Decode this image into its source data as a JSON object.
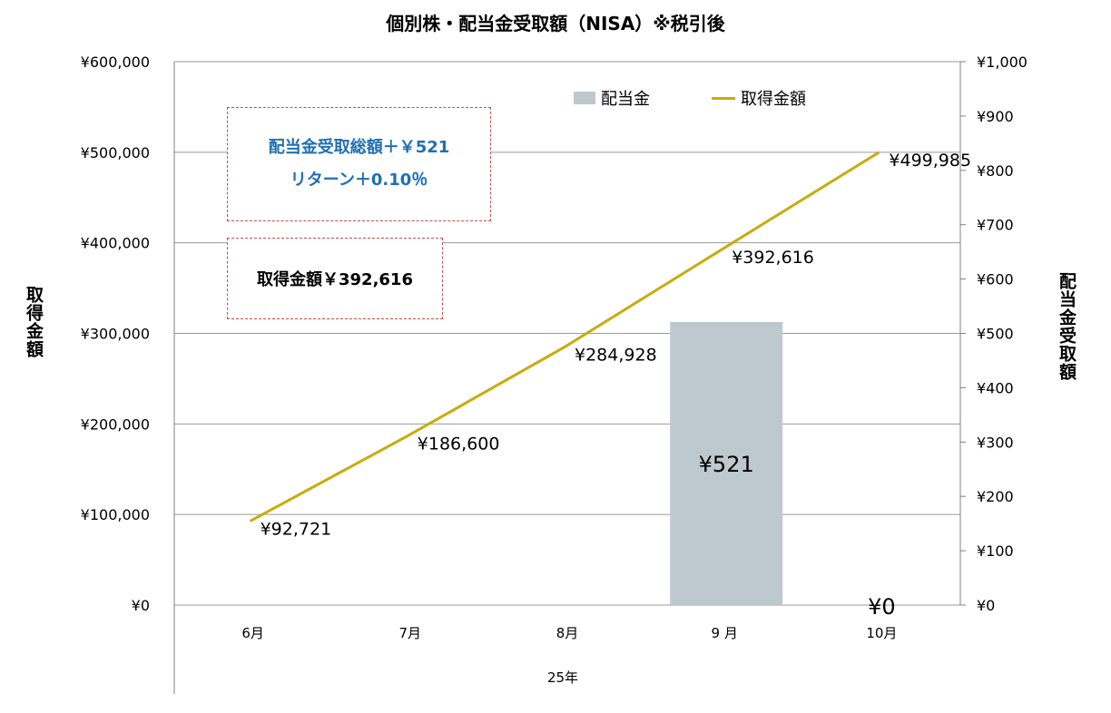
{
  "title": "個別株・配当金受取額（NISA）※税引後",
  "chart_data": {
    "type": "bar+line",
    "categories": [
      "6月",
      "7月",
      "8月",
      "9 月",
      "10月"
    ],
    "xlabel": "25年",
    "y_left": {
      "label": "取得金額",
      "ylim": [
        0,
        600000
      ],
      "ticks": [
        "¥0",
        "¥100,000",
        "¥200,000",
        "¥300,000",
        "¥400,000",
        "¥500,000",
        "¥600,000"
      ]
    },
    "y_right": {
      "label": "配当金受取額",
      "ylim": [
        0,
        1000
      ],
      "ticks": [
        "¥0",
        "¥100",
        "¥200",
        "¥300",
        "¥400",
        "¥500",
        "¥600",
        "¥700",
        "¥800",
        "¥900",
        "¥1,000"
      ]
    },
    "series": [
      {
        "name": "配当金",
        "type": "bar",
        "axis": "right",
        "color": "#bec9cf",
        "values": [
          null,
          null,
          null,
          521,
          0
        ],
        "labels": [
          "",
          "",
          "",
          "¥521",
          "¥0"
        ]
      },
      {
        "name": "取得金額",
        "type": "line",
        "axis": "left",
        "color": "#c8ac0c",
        "values": [
          92721,
          186600,
          284928,
          392616,
          499985
        ],
        "labels": [
          "¥92,721",
          "¥186,600",
          "¥284,928",
          "¥392,616",
          "¥499,985"
        ]
      }
    ],
    "grid": true,
    "legend_position": "top-right"
  },
  "annotations": {
    "box1_line1": "配当金受取総額＋￥521",
    "box1_line2": "リターン＋0.10％",
    "box2": "取得金額￥392,616"
  }
}
